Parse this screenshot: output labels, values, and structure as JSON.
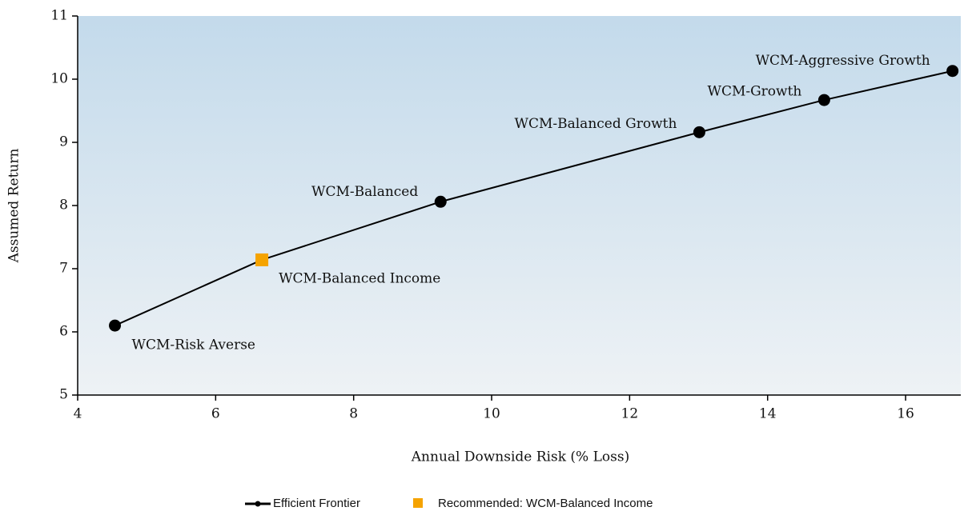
{
  "chart_data": {
    "type": "line",
    "xlabel": "Annual Downside Risk (% Loss)",
    "ylabel": "Assumed Return",
    "xlim": [
      4,
      16.8
    ],
    "xticks": [
      4,
      6,
      8,
      10,
      12,
      14,
      16
    ],
    "ylim": [
      5,
      11
    ],
    "yticks": [
      5,
      6,
      7,
      8,
      9,
      10,
      11
    ],
    "series": [
      {
        "name": "Efficient Frontier",
        "color": "#000000",
        "x": [
          4.54,
          6.67,
          9.26,
          13.01,
          14.82,
          16.68
        ],
        "values": [
          6.1,
          7.14,
          8.06,
          9.16,
          9.67,
          10.13
        ],
        "point_labels": [
          "WCM-Risk Averse",
          "WCM-Balanced Income",
          "WCM-Balanced",
          "WCM-Balanced Growth",
          "WCM-Growth",
          "WCM-Aggressive Growth"
        ]
      },
      {
        "name": "Recommended: WCM-Balanced Income",
        "color": "#f5a300",
        "x": [
          6.67
        ],
        "values": [
          7.14
        ]
      }
    ],
    "legend": "bottom"
  }
}
